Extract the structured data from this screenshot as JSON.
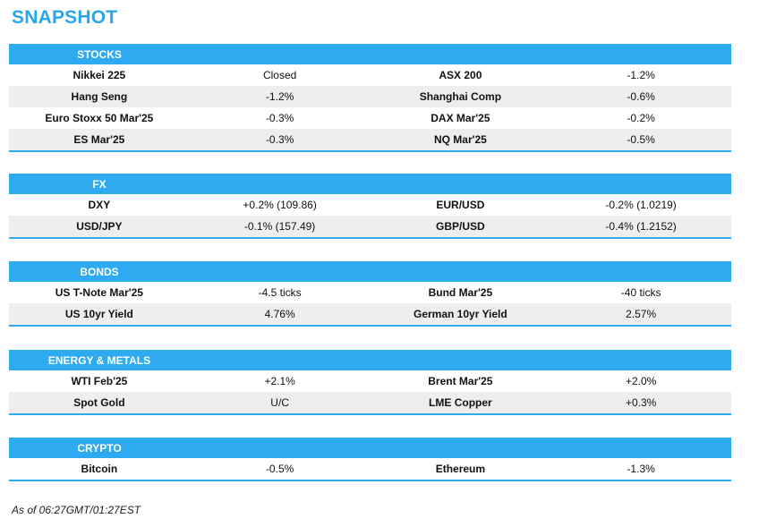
{
  "title": "SNAPSHOT",
  "sections": [
    {
      "header": "STOCKS",
      "rows": [
        [
          "Nikkei 225",
          "Closed",
          "ASX 200",
          "-1.2%"
        ],
        [
          "Hang Seng",
          "-1.2%",
          "Shanghai Comp",
          "-0.6%"
        ],
        [
          "Euro Stoxx 50 Mar'25",
          "-0.3%",
          "DAX Mar'25",
          "-0.2%"
        ],
        [
          "ES Mar'25",
          "-0.3%",
          "NQ Mar'25",
          "-0.5%"
        ]
      ]
    },
    {
      "header": "FX",
      "rows": [
        [
          "DXY",
          "+0.2% (109.86)",
          "EUR/USD",
          "-0.2% (1.0219)"
        ],
        [
          "USD/JPY",
          "-0.1% (157.49)",
          "GBP/USD",
          "-0.4% (1.2152)"
        ]
      ]
    },
    {
      "header": "BONDS",
      "rows": [
        [
          "US T-Note Mar'25",
          "-4.5 ticks",
          "Bund Mar'25",
          "-40 ticks"
        ],
        [
          "US 10yr Yield",
          "4.76%",
          "German 10yr Yield",
          "2.57%"
        ]
      ]
    },
    {
      "header": "ENERGY & METALS",
      "rows": [
        [
          "WTI Feb'25",
          "+2.1%",
          "Brent Mar'25",
          "+2.0%"
        ],
        [
          "Spot Gold",
          "U/C",
          "LME Copper",
          "+0.3%"
        ]
      ]
    },
    {
      "header": "CRYPTO",
      "rows": [
        [
          "Bitcoin",
          "-0.5%",
          "Ethereum",
          "-1.3%"
        ]
      ]
    }
  ],
  "footer": "As of 06:27GMT/01:27EST",
  "colors": {
    "accent": "#2eaaf0",
    "title": "#2aa7e8",
    "alt_row": "#eeeeee"
  }
}
